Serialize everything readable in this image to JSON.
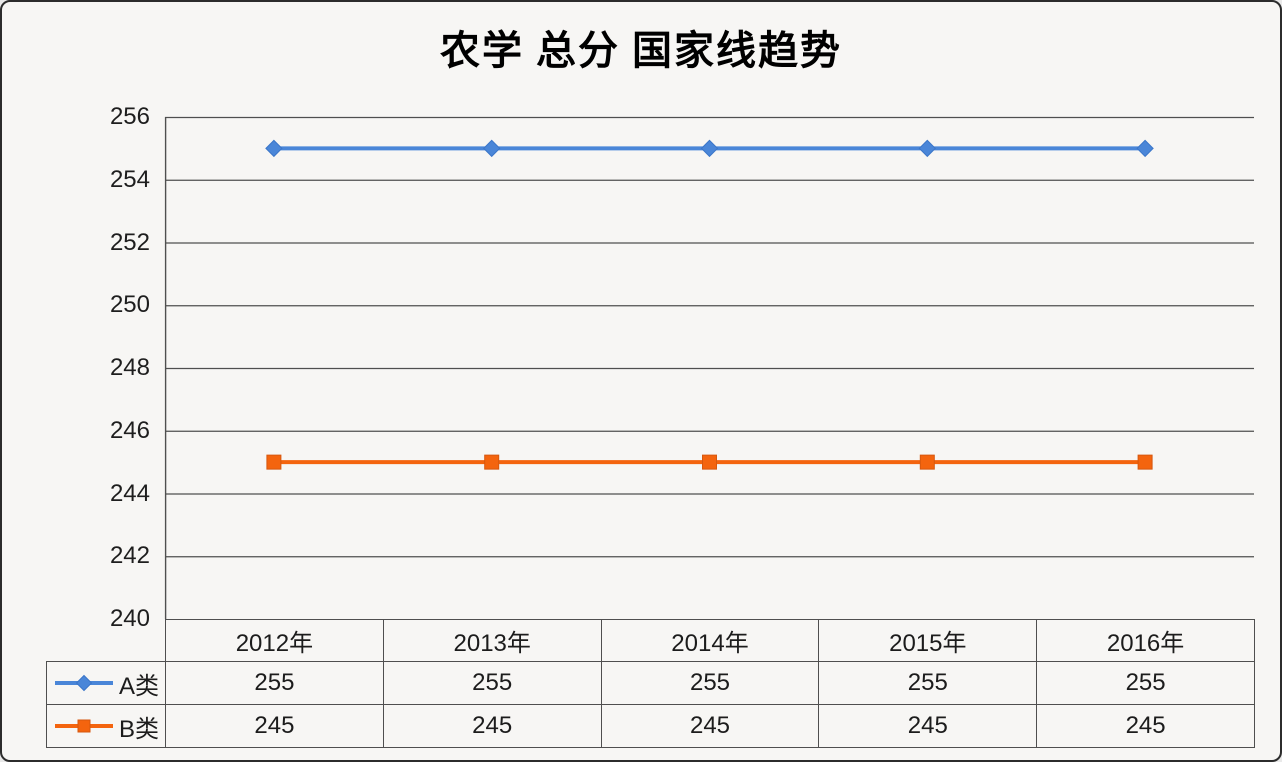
{
  "page": {
    "background": "#f7f6f4",
    "frame_border_color": "#2c2c2c"
  },
  "chart_data": {
    "type": "line",
    "title": "农学 总分 国家线趋势",
    "categories": [
      "2012年",
      "2013年",
      "2014年",
      "2015年",
      "2016年"
    ],
    "series": [
      {
        "name": "A类",
        "values": [
          255,
          255,
          255,
          255,
          255
        ],
        "color": "#4a86d8",
        "marker": "diamond",
        "marker_stroke": "#3b76c9"
      },
      {
        "name": "B类",
        "values": [
          245,
          245,
          245,
          245,
          245
        ],
        "color": "#f4640e",
        "marker": "square",
        "marker_stroke": "#d6570e"
      }
    ],
    "ylim": [
      240,
      256
    ],
    "ytick_step": 2,
    "ytick_labels": [
      "256",
      "254",
      "252",
      "250",
      "248",
      "246",
      "244",
      "242",
      "240"
    ],
    "grid": true,
    "gridline_color": "#4f4f4f",
    "axis_color": "#4f4f4f",
    "legend_position": "table-left",
    "table_shown": true
  }
}
